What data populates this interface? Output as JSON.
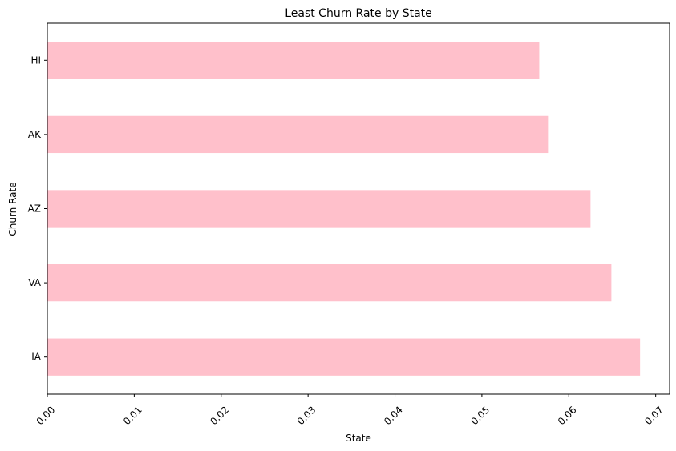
{
  "chart_data": {
    "type": "bar",
    "orientation": "horizontal",
    "title": "Least Churn Rate by State",
    "xlabel": "State",
    "ylabel": "Churn Rate",
    "categories": [
      "HI",
      "AK",
      "AZ",
      "VA",
      "IA"
    ],
    "values": [
      0.0566,
      0.0577,
      0.0625,
      0.0649,
      0.0682
    ],
    "xlim": [
      0,
      0.0716
    ],
    "xticks": [
      "0.00",
      "0.01",
      "0.02",
      "0.03",
      "0.04",
      "0.05",
      "0.06",
      "0.07"
    ],
    "xtick_values": [
      0,
      0.01,
      0.02,
      0.03,
      0.04,
      0.05,
      0.06,
      0.07
    ],
    "xtick_rotation": 45,
    "grid": false,
    "legend": "none",
    "bar_color": "#ffc0cb"
  }
}
